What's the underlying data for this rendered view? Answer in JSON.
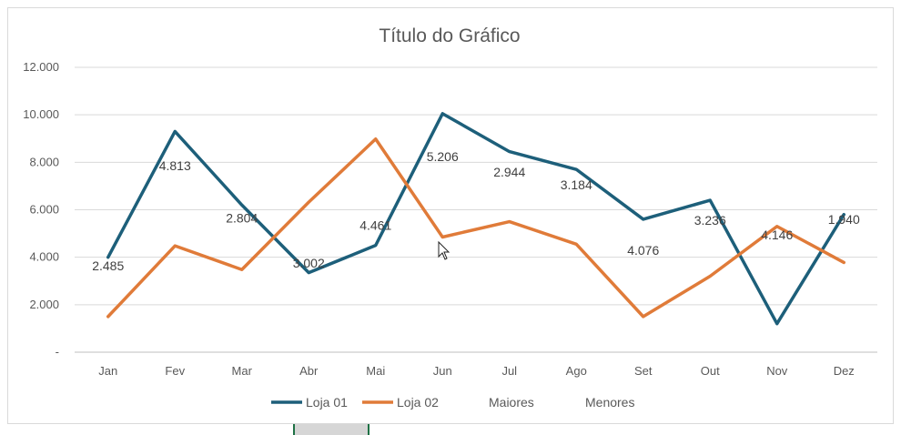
{
  "chart_data": {
    "type": "line",
    "title": "Título do Gráfico",
    "categories": [
      "Jan",
      "Fev",
      "Mar",
      "Abr",
      "Mai",
      "Jun",
      "Jul",
      "Ago",
      "Set",
      "Out",
      "Nov",
      "Dez"
    ],
    "yticks": [
      "-",
      "2.000",
      "4.000",
      "6.000",
      "8.000",
      "10.000",
      "12.000"
    ],
    "ylim": [
      0,
      12000
    ],
    "grid": true,
    "legend_position": "bottom",
    "series": [
      {
        "name": "Loja 01",
        "color": "#1d5f7a",
        "values": [
          4000,
          9300,
          6200,
          3350,
          4500,
          10050,
          8450,
          7700,
          5600,
          6400,
          1200,
          5800
        ]
      },
      {
        "name": "Loja 02",
        "color": "#e07b39",
        "values": [
          1500,
          4480,
          3480,
          6320,
          8980,
          4850,
          5500,
          4550,
          1500,
          3200,
          5300,
          3780
        ]
      }
    ],
    "extra_legend": [
      "Maiores",
      "Menores"
    ],
    "data_labels": [
      "2.485",
      "4.813",
      "2.804",
      "3.002",
      "4.461",
      "5.206",
      "2.944",
      "3.184",
      "4.076",
      "3.236",
      "4.146",
      "1.940"
    ],
    "data_label_levels": [
      3650,
      7850,
      5650,
      3750,
      5350,
      8250,
      7600,
      7050,
      4300,
      5550,
      4950,
      5600
    ]
  }
}
